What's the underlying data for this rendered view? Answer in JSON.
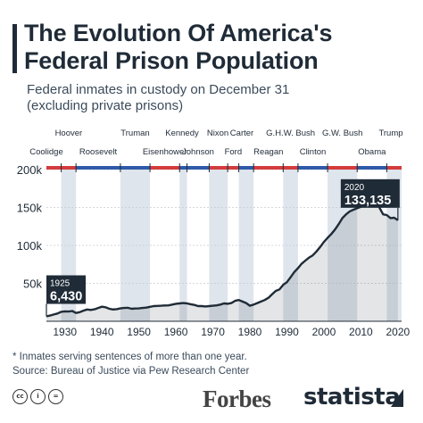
{
  "header": {
    "title_line1": "The Evolution Of America's",
    "title_line2": "Federal Prison Population",
    "subtitle_line1": "Federal inmates in custody on December 31",
    "subtitle_line2": "(excluding private prisons)"
  },
  "notes": {
    "footnote": "* Inmates serving sentences of more than one year.",
    "source": "Source: Bureau of Justice via Pew Research Center"
  },
  "footer": {
    "license_icons": [
      "cc",
      "i",
      "="
    ],
    "forbes": "Forbes",
    "statista": "statista"
  },
  "colors": {
    "line": "#1f2b37",
    "fill": "#1f2b37",
    "shade": "#dfe5ec",
    "republican": "#d33c3c",
    "democrat": "#2f5aa8",
    "callout": "#1f2b37"
  },
  "chart_data": {
    "type": "area",
    "title": "Federal inmates in custody on December 31",
    "xlabel": "",
    "ylabel": "",
    "xlim": [
      1925,
      2021
    ],
    "ylim": [
      0,
      200000
    ],
    "x_ticks": [
      1930,
      1940,
      1950,
      1960,
      1970,
      1980,
      1990,
      2000,
      2010,
      2020
    ],
    "x_tick_labels": [
      "1930",
      "1940",
      "1950",
      "1960",
      "1970",
      "1980",
      "1990",
      "2000",
      "2010",
      "2020"
    ],
    "y_ticks": [
      50000,
      100000,
      150000,
      200000
    ],
    "y_tick_labels": [
      "50k",
      "100k",
      "150k",
      "200k"
    ],
    "grid": true,
    "series": [
      {
        "x": [
          1925,
          1926,
          1927,
          1928,
          1929,
          1930,
          1931,
          1932,
          1933,
          1934,
          1935,
          1936,
          1937,
          1938,
          1939,
          1940,
          1941,
          1942,
          1943,
          1944,
          1945,
          1946,
          1947,
          1948,
          1949,
          1950,
          1951,
          1952,
          1953,
          1954,
          1955,
          1956,
          1957,
          1958,
          1959,
          1960,
          1961,
          1962,
          1963,
          1964,
          1965,
          1966,
          1967,
          1968,
          1969,
          1970,
          1971,
          1972,
          1973,
          1974,
          1975,
          1976,
          1977,
          1978,
          1979,
          1980,
          1981,
          1982,
          1983,
          1984,
          1985,
          1986,
          1987,
          1988,
          1989,
          1990,
          1991,
          1992,
          1993,
          1994,
          1995,
          1996,
          1997,
          1998,
          1999,
          2000,
          2001,
          2002,
          2003,
          2004,
          2005,
          2006,
          2007,
          2008,
          2009,
          2010,
          2011,
          2012,
          2013,
          2014,
          2015,
          2016,
          2017,
          2018,
          2019,
          2020
        ],
        "y": [
          6430,
          7500,
          8900,
          10200,
          12500,
          13000,
          12800,
          13500,
          11000,
          12000,
          14000,
          15500,
          15000,
          15800,
          17500,
          19200,
          18500,
          16500,
          15500,
          16000,
          17000,
          17500,
          17800,
          16500,
          16800,
          17000,
          17500,
          18000,
          19000,
          20000,
          20200,
          20500,
          20800,
          21000,
          22000,
          23000,
          23500,
          24000,
          23500,
          22500,
          21500,
          20000,
          20000,
          19500,
          20000,
          20500,
          21000,
          22000,
          23500,
          23000,
          24000,
          27000,
          28000,
          26000,
          24000,
          20500,
          22000,
          24000,
          26000,
          28000,
          31000,
          35500,
          40000,
          42000,
          48000,
          51500,
          58000,
          65000,
          70000,
          76000,
          80000,
          84000,
          87000,
          92000,
          98000,
          104500,
          110000,
          115000,
          121000,
          128000,
          136000,
          141000,
          145000,
          147000,
          149000,
          151000,
          154000,
          158000,
          159000,
          156000,
          150000,
          141000,
          140000,
          136000,
          136500,
          133135
        ]
      }
    ],
    "callouts": [
      {
        "year_label": "1925",
        "value_label": "6,430",
        "x": 1925,
        "y": 6430
      },
      {
        "year_label": "2020",
        "value_label": "133,135",
        "x": 2020,
        "y": 133135
      }
    ],
    "presidents": [
      {
        "name": "Coolidge",
        "start": 1923,
        "end": 1929,
        "party": "R",
        "row": 2
      },
      {
        "name": "Hoover",
        "start": 1929,
        "end": 1933,
        "party": "R",
        "row": 0
      },
      {
        "name": "Roosevelt",
        "start": 1933,
        "end": 1945,
        "party": "D",
        "row": 2
      },
      {
        "name": "Truman",
        "start": 1945,
        "end": 1953,
        "party": "D",
        "row": 0
      },
      {
        "name": "Eisenhower",
        "start": 1953,
        "end": 1961,
        "party": "R",
        "row": 2
      },
      {
        "name": "Kennedy",
        "start": 1961,
        "end": 1963,
        "party": "D",
        "row": 0
      },
      {
        "name": "Johnson",
        "start": 1963,
        "end": 1969,
        "party": "D",
        "row": 2
      },
      {
        "name": "Nixon",
        "start": 1969,
        "end": 1974,
        "party": "R",
        "row": 0
      },
      {
        "name": "Ford",
        "start": 1974,
        "end": 1977,
        "party": "R",
        "row": 2
      },
      {
        "name": "Carter",
        "start": 1977,
        "end": 1981,
        "party": "D",
        "row": 0
      },
      {
        "name": "Reagan",
        "start": 1981,
        "end": 1989,
        "party": "R",
        "row": 2
      },
      {
        "name": "G.H.W. Bush",
        "start": 1989,
        "end": 1993,
        "party": "R",
        "row": 0
      },
      {
        "name": "Clinton",
        "start": 1993,
        "end": 2001,
        "party": "D",
        "row": 2
      },
      {
        "name": "G.W. Bush",
        "start": 2001,
        "end": 2009,
        "party": "R",
        "row": 0
      },
      {
        "name": "Obama",
        "start": 2009,
        "end": 2017,
        "party": "D",
        "row": 2
      },
      {
        "name": "Trump",
        "start": 2017,
        "end": 2021,
        "party": "R",
        "row": 0
      }
    ]
  }
}
